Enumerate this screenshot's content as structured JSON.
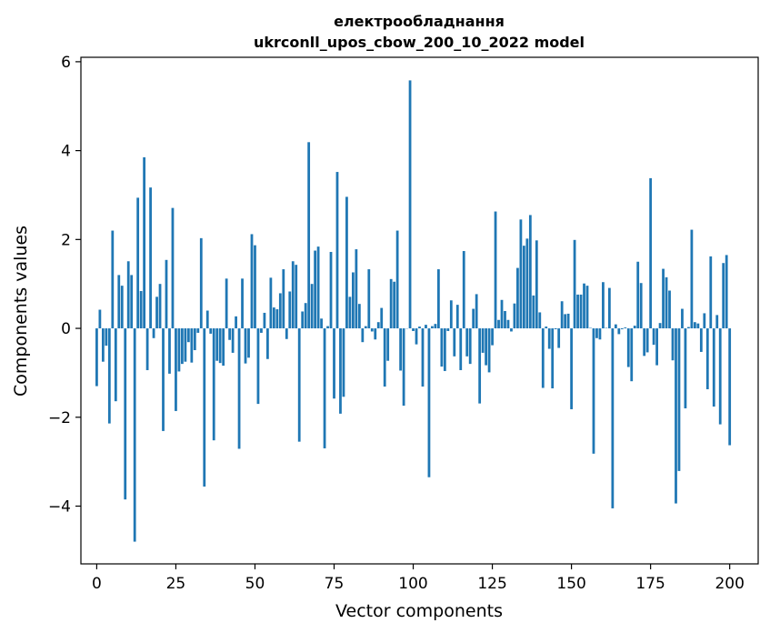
{
  "chart_data": {
    "type": "bar",
    "title_line1": "електрообладнання",
    "title_line2": "ukrconll_upos_cbow_200_10_2022 model",
    "xlabel": "Vector components",
    "ylabel": "Components values",
    "xlim": [
      -5,
      209
    ],
    "ylim": [
      -5.3,
      6.1
    ],
    "xticks": [
      0,
      25,
      50,
      75,
      100,
      125,
      150,
      175,
      200
    ],
    "yticks": [
      -4,
      -2,
      0,
      2,
      4,
      6
    ],
    "ytick_labels": [
      "−4",
      "−2",
      "0",
      "2",
      "4",
      "6"
    ],
    "grid": false,
    "bar_color": "#1f77b4",
    "values": [
      -1.3,
      0.42,
      -0.75,
      -0.39,
      -2.14,
      2.2,
      -1.64,
      1.2,
      0.96,
      -3.85,
      1.51,
      1.2,
      -4.8,
      2.94,
      0.84,
      3.85,
      -0.94,
      3.17,
      -0.22,
      0.71,
      1.0,
      -2.31,
      1.54,
      -1.02,
      2.71,
      -1.86,
      -0.97,
      -0.8,
      -0.75,
      -0.31,
      -0.77,
      -0.49,
      -0.1,
      2.03,
      -3.56,
      0.4,
      -0.12,
      -2.52,
      -0.73,
      -0.78,
      -0.84,
      1.12,
      -0.26,
      -0.55,
      0.27,
      -2.71,
      1.12,
      -0.79,
      -0.66,
      2.12,
      1.87,
      -1.7,
      -0.1,
      0.35,
      -0.69,
      1.14,
      0.47,
      0.43,
      0.79,
      1.33,
      -0.24,
      0.83,
      1.51,
      1.43,
      -2.55,
      0.38,
      0.57,
      4.19,
      1.0,
      1.75,
      1.84,
      0.22,
      -2.7,
      0.05,
      1.72,
      -1.58,
      3.52,
      -1.92,
      -1.54,
      2.96,
      0.71,
      1.26,
      1.78,
      0.55,
      -0.31,
      0.05,
      1.33,
      -0.07,
      -0.25,
      0.14,
      0.46,
      -1.31,
      -0.73,
      1.11,
      1.05,
      2.2,
      -0.95,
      -1.74,
      0.0,
      5.58,
      -0.06,
      -0.36,
      0.04,
      -1.31,
      0.08,
      -3.35,
      0.05,
      0.1,
      1.33,
      -0.86,
      -0.96,
      -0.06,
      0.63,
      -0.63,
      0.53,
      -0.94,
      1.74,
      -0.63,
      -0.8,
      0.44,
      0.77,
      -1.69,
      -0.55,
      -0.83,
      -0.99,
      -0.38,
      2.63,
      0.19,
      0.64,
      0.39,
      0.19,
      -0.07,
      0.56,
      1.36,
      2.45,
      1.86,
      2.02,
      2.55,
      0.74,
      1.98,
      0.36,
      -1.34,
      0.04,
      -0.46,
      -1.35,
      -0.02,
      -0.44,
      0.61,
      0.32,
      0.33,
      -1.82,
      1.99,
      0.76,
      0.76,
      1.01,
      0.96,
      0.01,
      -2.82,
      -0.22,
      -0.25,
      1.04,
      0.01,
      0.91,
      -4.05,
      0.09,
      -0.13,
      -0.02,
      0.02,
      -0.87,
      -1.19,
      0.06,
      1.5,
      1.02,
      -0.62,
      -0.54,
      3.38,
      -0.37,
      -0.83,
      0.12,
      1.34,
      1.15,
      0.85,
      -0.72,
      -3.94,
      -3.21,
      0.44,
      -1.8,
      0.03,
      2.22,
      0.14,
      0.11,
      -0.53,
      0.34,
      -1.37,
      1.62,
      -1.76,
      0.3,
      -2.16,
      1.47,
      1.65,
      -2.63
    ]
  }
}
